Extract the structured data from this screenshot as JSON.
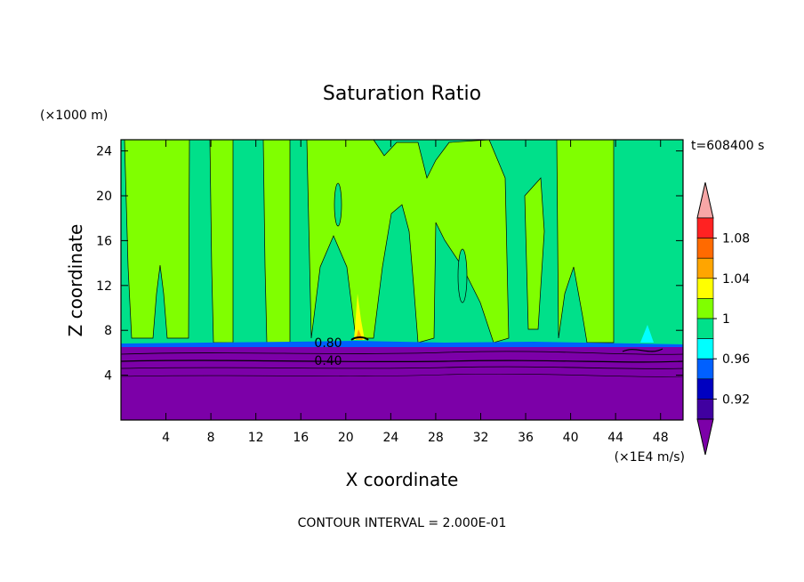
{
  "chart_data": {
    "type": "heatmap",
    "title": "Saturation Ratio",
    "xlabel": "X coordinate",
    "ylabel": "Z coordinate",
    "x_units": "(×1E4 m/s)",
    "y_units": "(×1000 m)",
    "time_label": "t=608400 s",
    "footer": "CONTOUR INTERVAL = 2.000E-01",
    "xlim": [
      0,
      50
    ],
    "ylim": [
      0,
      25
    ],
    "x_ticks": [
      "4",
      "8",
      "12",
      "16",
      "20",
      "24",
      "28",
      "32",
      "36",
      "40",
      "44",
      "48"
    ],
    "y_ticks": [
      "4",
      "8",
      "12",
      "16",
      "20",
      "24"
    ],
    "contour_labels": [
      {
        "text": "0.80",
        "x": 17.2,
        "z": 6.9
      },
      {
        "text": "0.40",
        "x": 17.2,
        "z": 5.3
      }
    ],
    "legend": {
      "labels": [
        "1.08",
        "1.04",
        "1",
        "0.96",
        "0.92"
      ],
      "colors": [
        "#f7a6a6",
        "#ff2222",
        "#ff6a00",
        "#ffa500",
        "#ffff00",
        "#80ff00",
        "#00e08a",
        "#00ffff",
        "#0060ff",
        "#0000c0",
        "#4000a0",
        "#7c00a8"
      ]
    },
    "colors": {
      "upper_green": "#80ff00",
      "upper_teal": "#00e08a",
      "lower_purple": "#7c00a8",
      "boundary_blue": "#0060ff"
    }
  }
}
